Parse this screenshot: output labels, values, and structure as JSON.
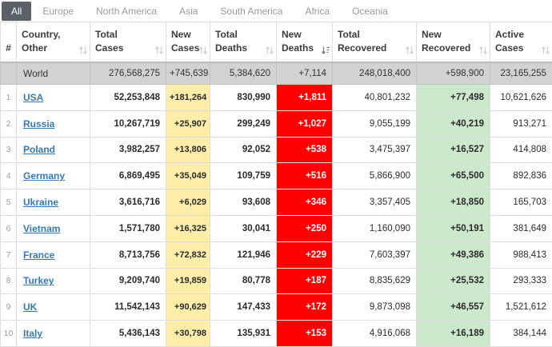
{
  "tabs": [
    {
      "label": "All",
      "selected": true
    },
    {
      "label": "Europe",
      "selected": false
    },
    {
      "label": "North America",
      "selected": false
    },
    {
      "label": "Asia",
      "selected": false
    },
    {
      "label": "South America",
      "selected": false
    },
    {
      "label": "Africa",
      "selected": false
    },
    {
      "label": "Oceania",
      "selected": false
    }
  ],
  "table": {
    "columns": [
      {
        "id": "rank",
        "lines": [
          "#"
        ],
        "sort": "none"
      },
      {
        "id": "country",
        "lines": [
          "Country,",
          "Other"
        ],
        "sort": "unsorted"
      },
      {
        "id": "total_cases",
        "lines": [
          "Total",
          "Cases"
        ],
        "sort": "unsorted"
      },
      {
        "id": "new_cases",
        "lines": [
          "New",
          "Cases"
        ],
        "sort": "unsorted"
      },
      {
        "id": "total_deaths",
        "lines": [
          "Total",
          "Deaths"
        ],
        "sort": "unsorted"
      },
      {
        "id": "new_deaths",
        "lines": [
          "New",
          "Deaths"
        ],
        "sort": "desc"
      },
      {
        "id": "total_recovered",
        "lines": [
          "Total",
          "Recovered"
        ],
        "sort": "unsorted"
      },
      {
        "id": "new_recovered",
        "lines": [
          "New",
          "Recovered"
        ],
        "sort": "unsorted"
      },
      {
        "id": "active_cases",
        "lines": [
          "Active",
          "Cases"
        ],
        "sort": "unsorted"
      }
    ],
    "world_row": {
      "rank": "",
      "country": "World",
      "total_cases": "276,568,275",
      "new_cases": "+745,639",
      "total_deaths": "5,384,620",
      "new_deaths": "+7,114",
      "total_recovered": "248,018,400",
      "new_recovered": "+598,900",
      "active_cases": "23,165,255"
    },
    "rows": [
      {
        "rank": "1",
        "country": "USA",
        "total_cases": "52,253,848",
        "new_cases": "+181,264",
        "total_deaths": "830,990",
        "new_deaths": "+1,811",
        "total_recovered": "40,801,232",
        "new_recovered": "+77,498",
        "active_cases": "10,621,626"
      },
      {
        "rank": "2",
        "country": "Russia",
        "total_cases": "10,267,719",
        "new_cases": "+25,907",
        "total_deaths": "299,249",
        "new_deaths": "+1,027",
        "total_recovered": "9,055,199",
        "new_recovered": "+40,219",
        "active_cases": "913,271"
      },
      {
        "rank": "3",
        "country": "Poland",
        "total_cases": "3,982,257",
        "new_cases": "+13,806",
        "total_deaths": "92,052",
        "new_deaths": "+538",
        "total_recovered": "3,475,397",
        "new_recovered": "+16,527",
        "active_cases": "414,808"
      },
      {
        "rank": "4",
        "country": "Germany",
        "total_cases": "6,869,495",
        "new_cases": "+35,049",
        "total_deaths": "109,759",
        "new_deaths": "+516",
        "total_recovered": "5,866,900",
        "new_recovered": "+65,500",
        "active_cases": "892,836"
      },
      {
        "rank": "5",
        "country": "Ukraine",
        "total_cases": "3,616,716",
        "new_cases": "+6,029",
        "total_deaths": "93,608",
        "new_deaths": "+346",
        "total_recovered": "3,357,405",
        "new_recovered": "+18,850",
        "active_cases": "165,703"
      },
      {
        "rank": "6",
        "country": "Vietnam",
        "total_cases": "1,571,780",
        "new_cases": "+16,325",
        "total_deaths": "30,041",
        "new_deaths": "+250",
        "total_recovered": "1,160,090",
        "new_recovered": "+50,191",
        "active_cases": "381,649"
      },
      {
        "rank": "7",
        "country": "France",
        "total_cases": "8,713,756",
        "new_cases": "+72,832",
        "total_deaths": "121,946",
        "new_deaths": "+229",
        "total_recovered": "7,603,397",
        "new_recovered": "+49,386",
        "active_cases": "988,413"
      },
      {
        "rank": "8",
        "country": "Turkey",
        "total_cases": "9,209,740",
        "new_cases": "+19,859",
        "total_deaths": "80,778",
        "new_deaths": "+187",
        "total_recovered": "8,835,629",
        "new_recovered": "+25,532",
        "active_cases": "293,333"
      },
      {
        "rank": "9",
        "country": "UK",
        "total_cases": "11,542,143",
        "new_cases": "+90,629",
        "total_deaths": "147,433",
        "new_deaths": "+172",
        "total_recovered": "9,873,098",
        "new_recovered": "+46,557",
        "active_cases": "1,521,612"
      },
      {
        "rank": "10",
        "country": "Italy",
        "total_cases": "5,436,143",
        "new_cases": "+30,798",
        "total_deaths": "135,931",
        "new_deaths": "+153",
        "total_recovered": "4,916,068",
        "new_recovered": "+16,189",
        "active_cases": "384,144"
      }
    ]
  },
  "colors": {
    "tab_selected_bg": "#5a6268",
    "new_cases_bg": "#ffeeaa",
    "new_deaths_bg": "#ff0000",
    "new_recovered_bg": "#cde9cd",
    "world_row_bg": "#d2d2d2",
    "link": "#337ab7"
  }
}
